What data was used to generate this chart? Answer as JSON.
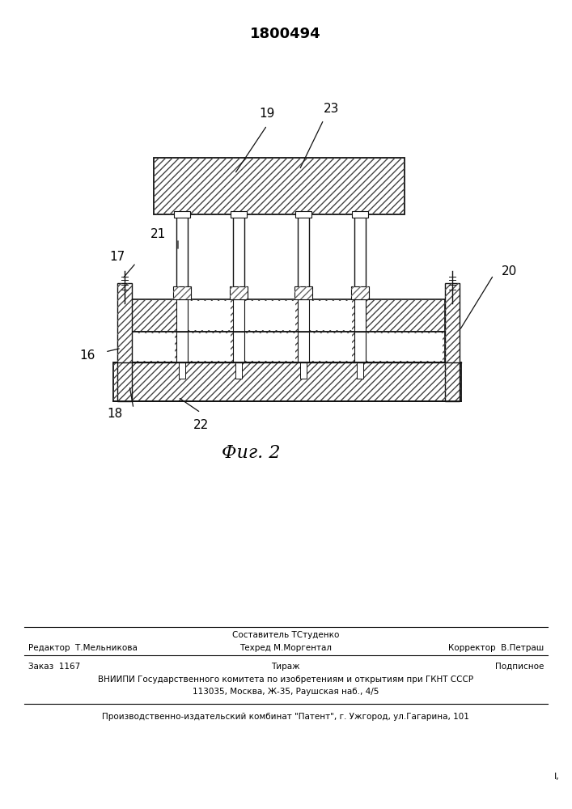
{
  "patent_number": "1800494",
  "fig_label": "Фиг. 2",
  "footer_line1_center_top": "Составитель ТСтуденко",
  "footer_line1_left": "Редактор  Т.Мельникова",
  "footer_line1_center_bot": "Техред М.Моргентал",
  "footer_line1_right": "Корректор  В.Петраш",
  "footer_line2_left": "Заказ  1167",
  "footer_line2_center": "Тираж",
  "footer_line2_right": "Подписное",
  "footer_line3": "ВНИИПИ Государственного комитета по изобретениям и открытиям при ГКНТ СССР",
  "footer_line4": "113035, Москва, Ж-35, Раушская наб., 4/5",
  "footer_line5": "Производственно-издательский комбинат \"Патент\", г. Ужгород, ул.Гагарина, 101",
  "line_color": "#111111",
  "hatch_color": "#444444"
}
